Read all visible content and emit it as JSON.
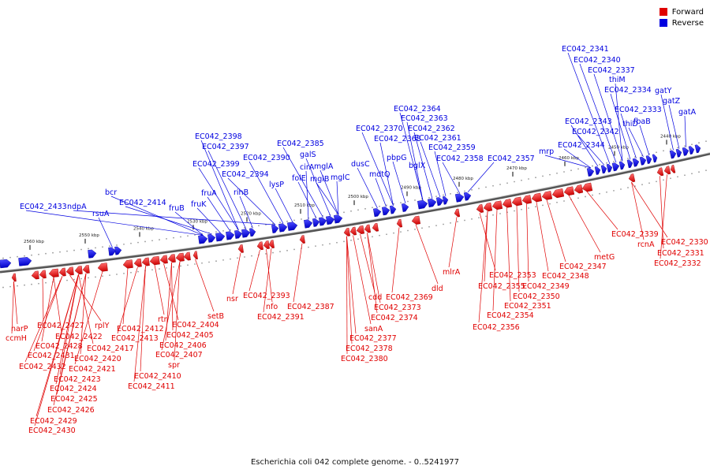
{
  "legend": {
    "forward_label": "Forward",
    "reverse_label": "Reverse",
    "forward_color": "#ff0000",
    "reverse_color": "#0000ff"
  },
  "caption": "Escherichia coli 042 complete genome. - 0..5241977",
  "ticks": [
    "2560 kbp",
    "2550 kbp",
    "2540 kbp",
    "2530 kbp",
    "2520 kbp",
    "2510 kbp",
    "2500 kbp",
    "2490 kbp",
    "2480 kbp",
    "2470 kbp",
    "2460 kbp",
    "2450 kbp",
    "2440 kbp"
  ],
  "reverse_labels": [
    "EC042_2433",
    "ndpA",
    "rsuA",
    "bcr",
    "EC042_2414",
    "fruB",
    "fruK",
    "fruA",
    "EC042_2399",
    "EC042_2398",
    "EC042_2397",
    "rihB",
    "EC042_2394",
    "EC042_2390",
    "lysP",
    "cirA",
    "folE",
    "EC042_2385",
    "galS",
    "mglA",
    "mglB",
    "mglC",
    "dusC",
    "mdtQ",
    "EC042_2370",
    "EC042_2368",
    "pbpG",
    "EC042_2364",
    "EC042_2363",
    "EC042_2362",
    "EC042_2361",
    "bglX",
    "EC042_2359",
    "EC042_2358",
    "EC042_2357",
    "mrp",
    "EC042_2344",
    "EC042_2343",
    "EC042_2342",
    "EC042_2341",
    "EC042_2340",
    "EC042_2337",
    "thiM",
    "EC042_2334",
    "EC042_2333",
    "thiD",
    "fbaB",
    "gatY",
    "gatZ",
    "gatA"
  ],
  "forward_labels": [
    "narP",
    "ccmH",
    "EC042_2427",
    "EC042_2428",
    "EC042_2422",
    "rplY",
    "EC042_2431",
    "EC042_2432",
    "EC042_2417",
    "EC042_2420",
    "EC042_2421",
    "EC042_2423",
    "EC042_2424",
    "EC042_2425",
    "EC042_2426",
    "EC042_2429",
    "EC042_2430",
    "EC042_2412",
    "EC042_2413",
    "rtn",
    "EC042_2404",
    "EC042_2405",
    "EC042_2406",
    "EC042_2407",
    "spr",
    "EC042_2410",
    "EC042_2411",
    "setB",
    "nsr",
    "EC042_2393",
    "nfo",
    "EC042_2391",
    "EC042_2387",
    "cdd",
    "sanA",
    "EC042_2377",
    "EC042_2378",
    "EC042_2380",
    "EC042_2373",
    "EC042_2374",
    "EC042_2369",
    "dld",
    "mlrA",
    "EC042_2353",
    "EC042_2355",
    "EC042_2356",
    "EC042_2354",
    "EC042_2351",
    "EC042_2350",
    "EC042_2349",
    "EC042_2348",
    "EC042_2347",
    "metG",
    "EC042_2339",
    "rcnA",
    "EC042_2330",
    "EC042_2331",
    "EC042_2332"
  ]
}
